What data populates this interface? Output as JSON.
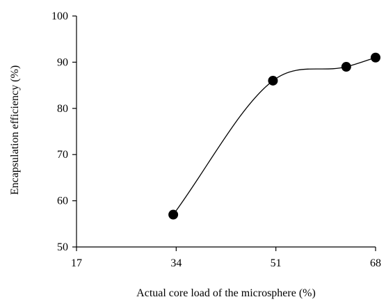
{
  "chart_data": {
    "type": "line",
    "title": "",
    "xlabel": "Actual core load of the microsphere (%)",
    "ylabel": "Encapsulation efficiency  (%)",
    "xlim": [
      17,
      68
    ],
    "ylim": [
      50,
      100
    ],
    "x_ticks": [
      17,
      34,
      51,
      68
    ],
    "y_ticks": [
      50,
      60,
      70,
      80,
      90,
      100
    ],
    "x_tick_labels": [
      "17",
      "34",
      "51",
      "68"
    ],
    "y_tick_labels": [
      "50",
      "60",
      "70",
      "80",
      "90",
      "100"
    ],
    "grid": false,
    "legend": "none",
    "series": [
      {
        "x": [
          33.5,
          50.5,
          63.0,
          68.0
        ],
        "y": [
          57,
          86,
          89,
          91
        ],
        "color": "#000000",
        "marker": "circle",
        "smooth": true
      }
    ]
  }
}
